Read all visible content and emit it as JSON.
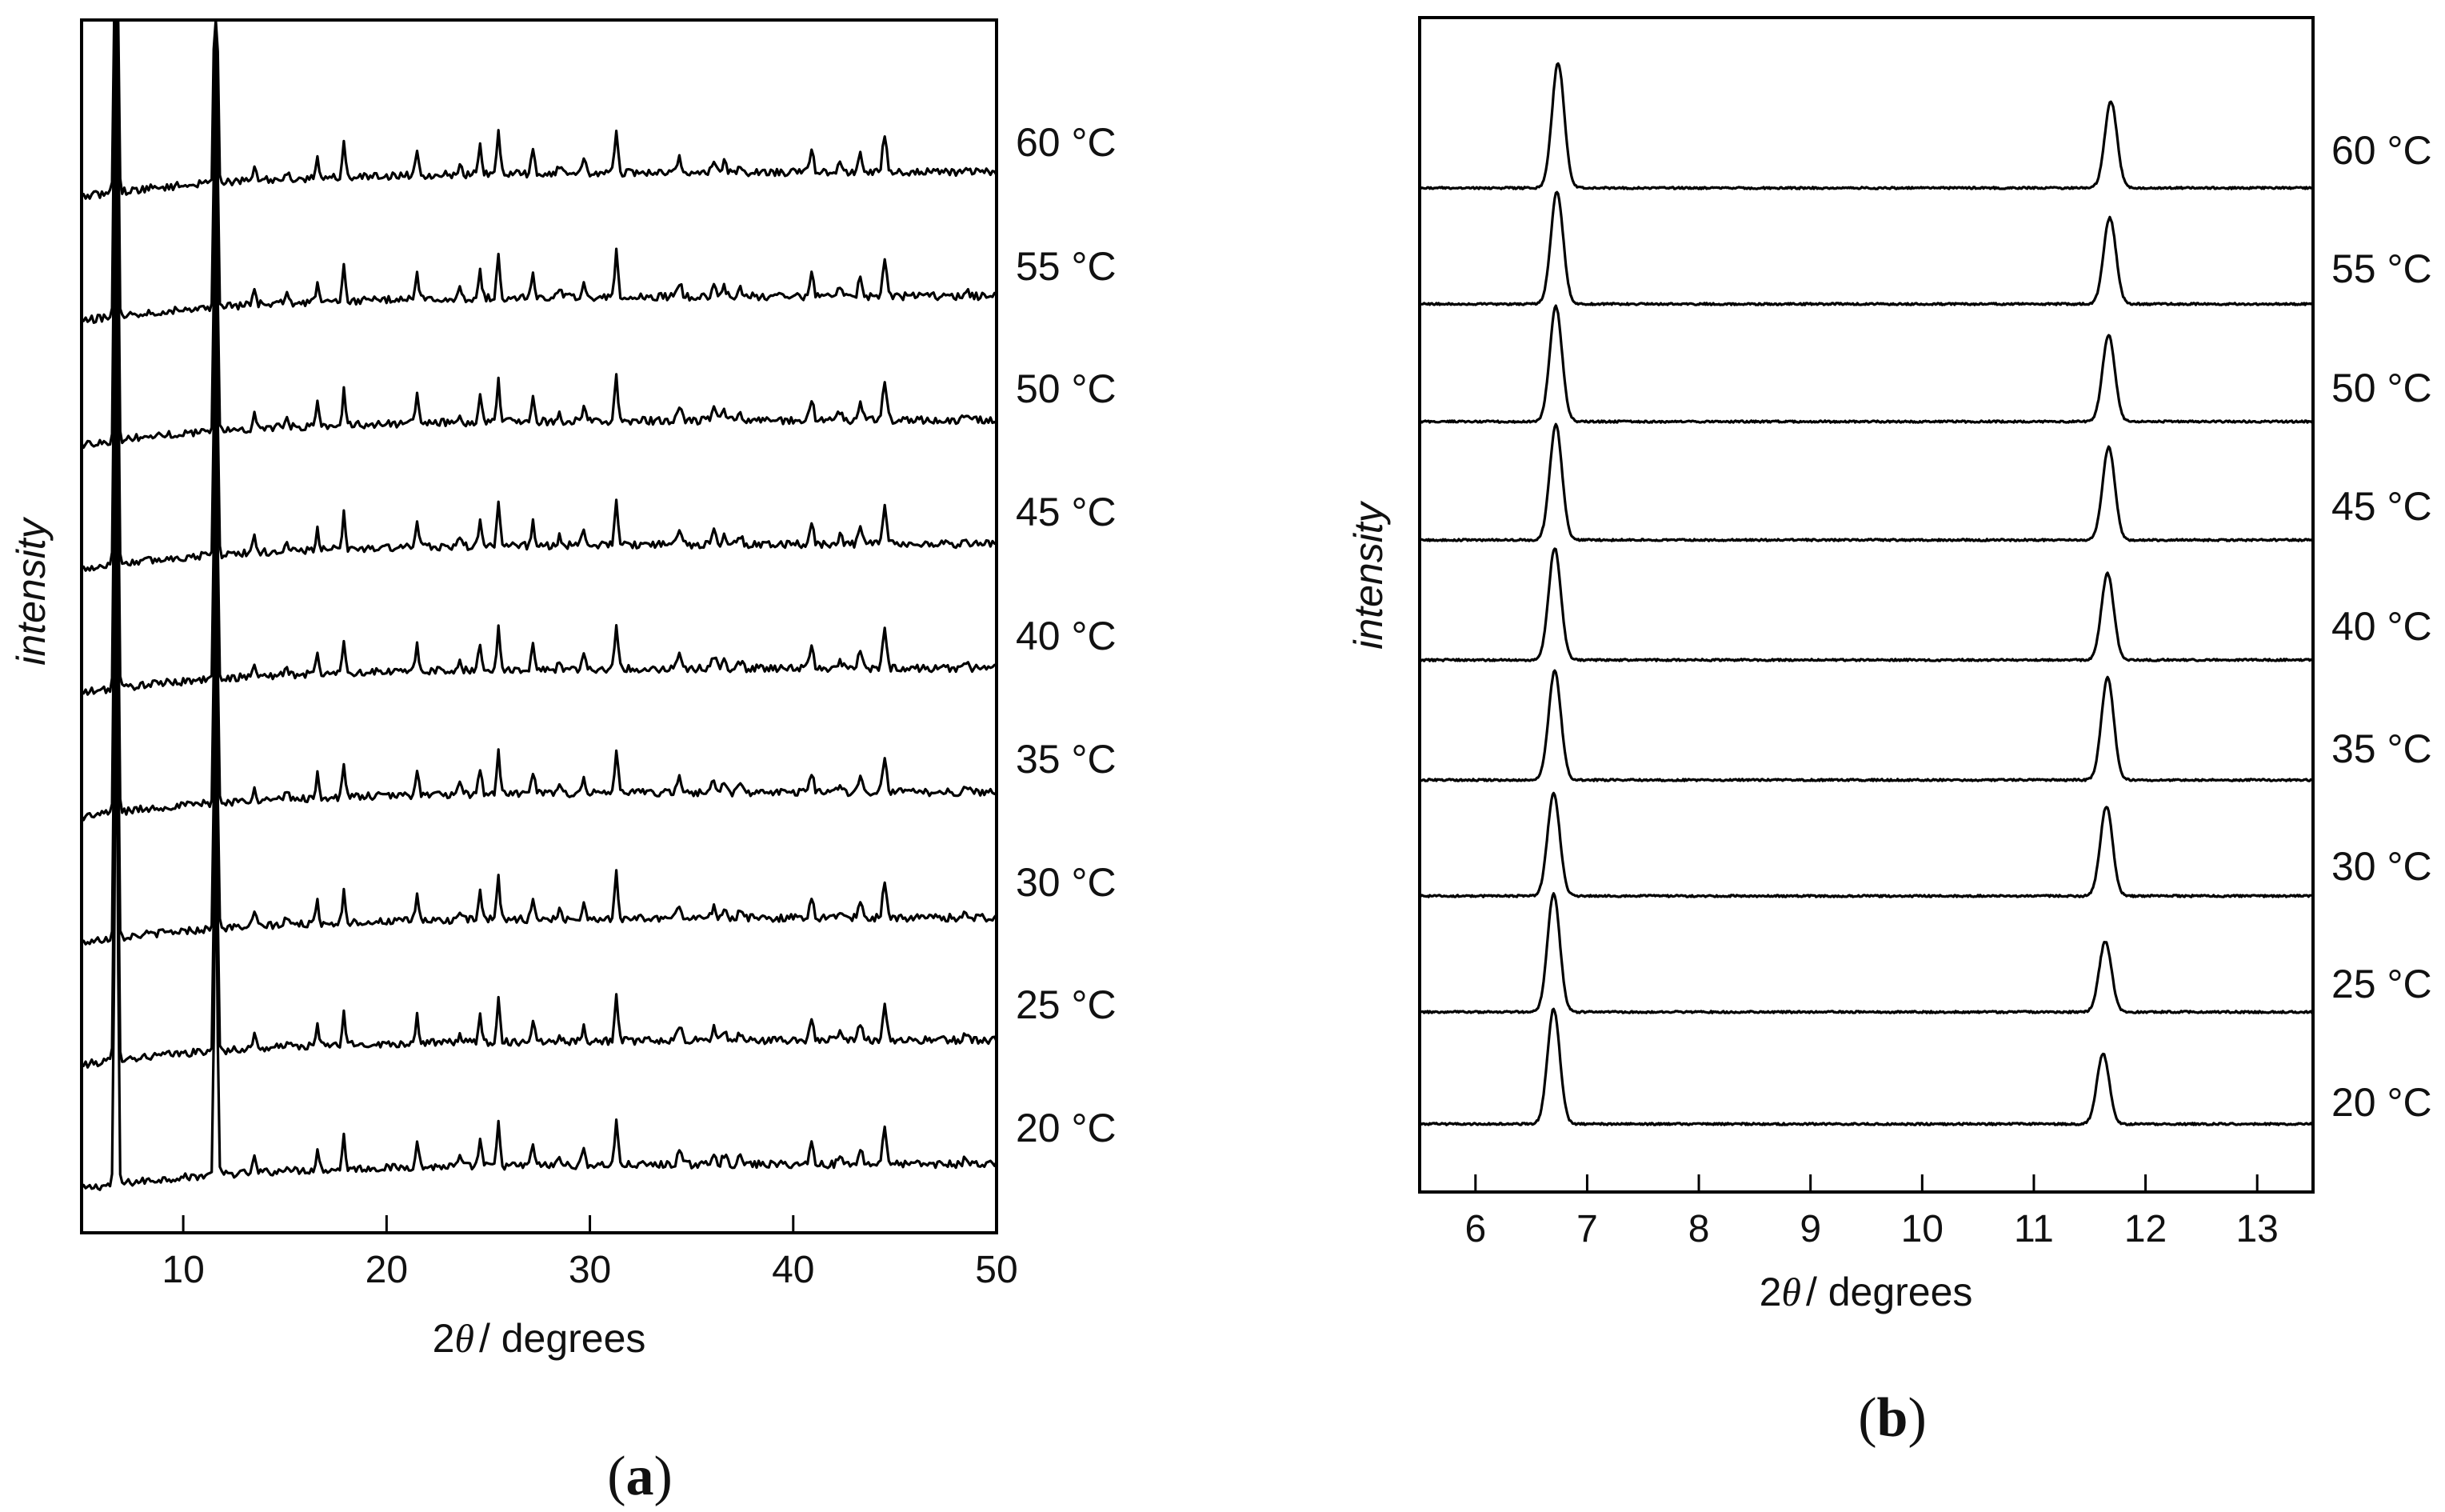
{
  "chart_data": [
    {
      "panel": "a",
      "type": "line",
      "panel_label": "(a)",
      "panel_letter": "a",
      "xlabel_prefix": "2",
      "xlabel_symbol": "θ",
      "xlabel_suffix": "/ degrees",
      "ylabel": "intensity",
      "xlim": [
        5,
        50
      ],
      "xticks": [
        10,
        20,
        30,
        40,
        50
      ],
      "x_step": 0.1,
      "series": [
        {
          "name": "20 °C",
          "label": "20 °C",
          "offset": 0
        },
        {
          "name": "25 °C",
          "label": "25 °C",
          "offset": 1
        },
        {
          "name": "30 °C",
          "label": "30 °C",
          "offset": 2
        },
        {
          "name": "35 °C",
          "label": "35 °C",
          "offset": 3
        },
        {
          "name": "40 °C",
          "label": "40 °C",
          "offset": 4
        },
        {
          "name": "45 °C",
          "label": "45 °C",
          "offset": 5
        },
        {
          "name": "50 °C",
          "label": "50 °C",
          "offset": 6
        },
        {
          "name": "55 °C",
          "label": "55 °C",
          "offset": 7
        },
        {
          "name": "60 °C",
          "label": "60 °C",
          "offset": 8
        }
      ],
      "peaks": [
        {
          "x": 6.7,
          "height": 28,
          "width": 0.07
        },
        {
          "x": 11.6,
          "height": 18,
          "width": 0.07
        },
        {
          "x": 13.5,
          "height": 0.7,
          "width": 0.08
        },
        {
          "x": 15.1,
          "height": 0.35,
          "width": 0.08
        },
        {
          "x": 16.6,
          "height": 1.1,
          "width": 0.07
        },
        {
          "x": 17.9,
          "height": 1.7,
          "width": 0.07
        },
        {
          "x": 21.5,
          "height": 1.3,
          "width": 0.08
        },
        {
          "x": 23.6,
          "height": 0.45,
          "width": 0.08
        },
        {
          "x": 24.6,
          "height": 1.3,
          "width": 0.08
        },
        {
          "x": 25.5,
          "height": 2.0,
          "width": 0.08
        },
        {
          "x": 27.2,
          "height": 1.1,
          "width": 0.08
        },
        {
          "x": 28.5,
          "height": 0.4,
          "width": 0.08
        },
        {
          "x": 29.7,
          "height": 0.8,
          "width": 0.08
        },
        {
          "x": 31.3,
          "height": 2.2,
          "width": 0.08
        },
        {
          "x": 34.4,
          "height": 0.7,
          "width": 0.1
        },
        {
          "x": 36.1,
          "height": 0.6,
          "width": 0.1
        },
        {
          "x": 36.6,
          "height": 0.5,
          "width": 0.1
        },
        {
          "x": 37.4,
          "height": 0.35,
          "width": 0.1
        },
        {
          "x": 40.9,
          "height": 1.0,
          "width": 0.1
        },
        {
          "x": 42.3,
          "height": 0.4,
          "width": 0.1
        },
        {
          "x": 43.3,
          "height": 0.8,
          "width": 0.1
        },
        {
          "x": 44.5,
          "height": 1.8,
          "width": 0.1
        },
        {
          "x": 48.5,
          "height": 0.3,
          "width": 0.1
        }
      ],
      "baseline": {
        "rise": 1.2,
        "rise_scale": 8,
        "noise": 0.18
      }
    },
    {
      "panel": "b",
      "type": "line",
      "panel_label": "(b)",
      "panel_letter": "b",
      "xlabel_prefix": "2",
      "xlabel_symbol": "θ",
      "xlabel_suffix": "/ degrees",
      "ylabel": "intensity",
      "xlim": [
        5.5,
        13.5
      ],
      "xticks": [
        6,
        7,
        8,
        9,
        10,
        11,
        12,
        13
      ],
      "x_step": 0.01,
      "series": [
        {
          "name": "20 °C",
          "label": "20 °C",
          "offset": 0,
          "peak1_x": 6.7,
          "peak1_h": 1.8,
          "peak2_x": 11.62,
          "peak2_h": 1.1
        },
        {
          "name": "25 °C",
          "label": "25 °C",
          "offset": 1,
          "peak1_x": 6.7,
          "peak1_h": 1.85,
          "peak2_x": 11.64,
          "peak2_h": 1.1
        },
        {
          "name": "30 °C",
          "label": "30 °C",
          "offset": 2,
          "peak1_x": 6.7,
          "peak1_h": 1.6,
          "peak2_x": 11.65,
          "peak2_h": 1.4
        },
        {
          "name": "35 °C",
          "label": "35 °C",
          "offset": 3,
          "peak1_x": 6.71,
          "peak1_h": 1.7,
          "peak2_x": 11.66,
          "peak2_h": 1.6
        },
        {
          "name": "40 °C",
          "label": "40 °C",
          "offset": 4,
          "peak1_x": 6.71,
          "peak1_h": 1.75,
          "peak2_x": 11.66,
          "peak2_h": 1.35
        },
        {
          "name": "45 °C",
          "label": "45 °C",
          "offset": 5,
          "peak1_x": 6.72,
          "peak1_h": 1.8,
          "peak2_x": 11.67,
          "peak2_h": 1.45
        },
        {
          "name": "50 °C",
          "label": "50 °C",
          "offset": 6,
          "peak1_x": 6.72,
          "peak1_h": 1.8,
          "peak2_x": 11.67,
          "peak2_h": 1.35
        },
        {
          "name": "55 °C",
          "label": "55 °C",
          "offset": 7,
          "peak1_x": 6.73,
          "peak1_h": 1.75,
          "peak2_x": 11.68,
          "peak2_h": 1.35
        },
        {
          "name": "60 °C",
          "label": "60 °C",
          "offset": 8,
          "peak1_x": 6.74,
          "peak1_h": 1.95,
          "peak2_x": 11.69,
          "peak2_h": 1.35
        }
      ],
      "peak_width": 0.055,
      "baseline": {
        "noise": 0.015
      }
    }
  ]
}
